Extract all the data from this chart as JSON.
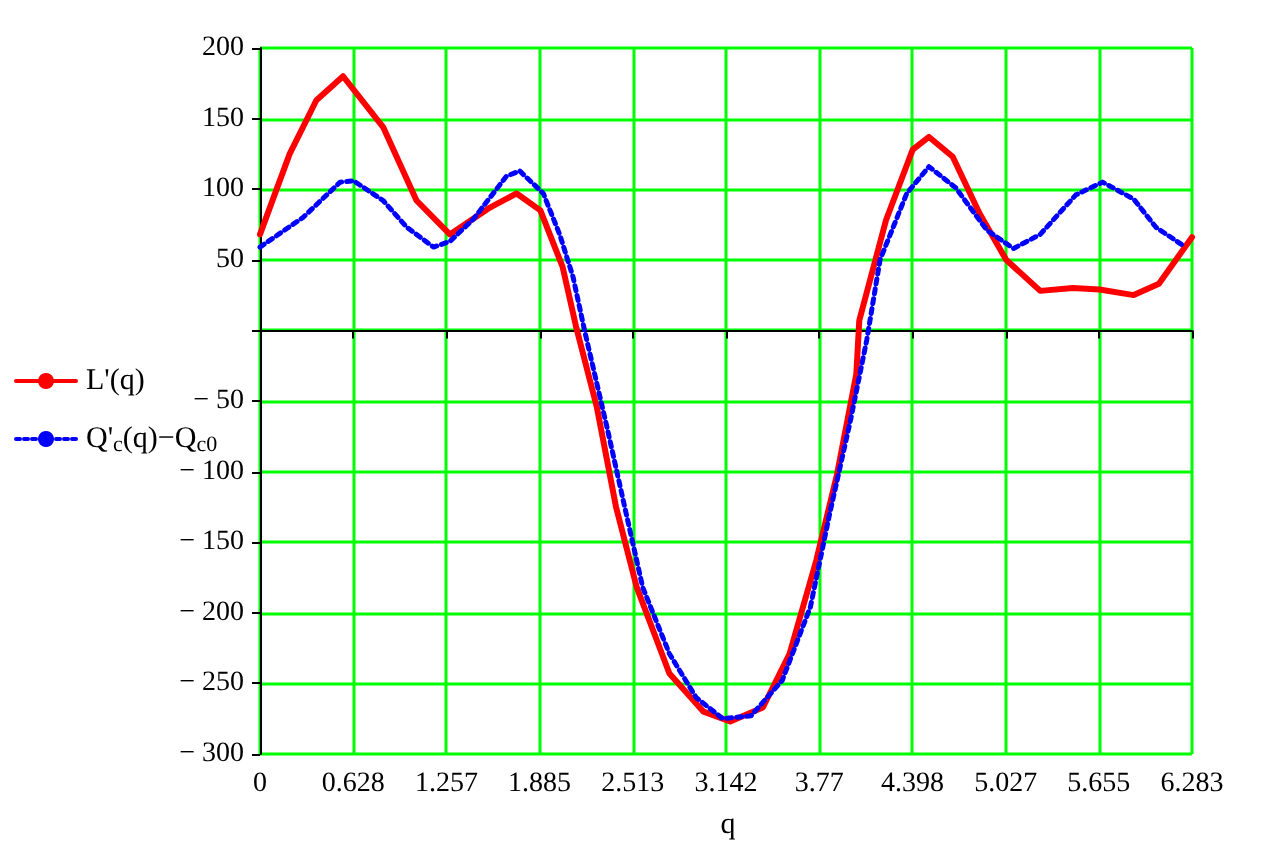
{
  "chart_data": {
    "type": "line",
    "xlabel": "q",
    "xlim": [
      0,
      6.283
    ],
    "xticks": [
      0,
      0.628,
      1.257,
      1.885,
      2.513,
      3.142,
      3.77,
      4.398,
      5.027,
      5.655,
      6.283
    ],
    "ylim": [
      -300,
      200
    ],
    "yticks": [
      -300,
      -250,
      -200,
      -150,
      -100,
      -50,
      {
        "value": 0,
        "label": null
      },
      50,
      100,
      150,
      200
    ],
    "grid": true,
    "legend": "left",
    "series": [
      {
        "name": "L'(q)",
        "color": "#ff0000",
        "line_style": "solid",
        "x": [
          0,
          0.2,
          0.38,
          0.56,
          0.83,
          1.055,
          1.28,
          1.55,
          1.73,
          1.89,
          2.04,
          2.13,
          2.27,
          2.4,
          2.54,
          2.76,
          2.99,
          3.17,
          3.39,
          3.57,
          3.75,
          3.89,
          4.02,
          4.04,
          4.22,
          4.4,
          4.51,
          4.67,
          4.85,
          5.03,
          5.26,
          5.48,
          5.66,
          5.89,
          6.06,
          6.283
        ],
        "values": [
          68,
          125,
          163,
          180,
          144,
          92,
          68,
          87,
          97,
          85,
          45,
          3,
          -54,
          -125,
          -182,
          -243,
          -270,
          -277,
          -267,
          -229,
          -163,
          -102,
          -31,
          7,
          78,
          128,
          137,
          123,
          83,
          50,
          28,
          30,
          29,
          25,
          33,
          66
        ]
      },
      {
        "name": "Q'$_{c}$(q)−Q$_{c0}$",
        "color": "#0000ff",
        "line_style": "dotted",
        "x": [
          0,
          0.29,
          0.54,
          0.63,
          0.83,
          0.99,
          1.17,
          1.28,
          1.44,
          1.66,
          1.75,
          1.91,
          2.02,
          2.11,
          2.19,
          2.34,
          2.45,
          2.58,
          2.76,
          2.94,
          3.12,
          3.31,
          3.52,
          3.71,
          3.84,
          3.98,
          4.09,
          4.18,
          4.36,
          4.51,
          4.69,
          4.9,
          5.08,
          5.26,
          5.5,
          5.68,
          5.89,
          6.04,
          6.24
        ],
        "values": [
          59,
          80,
          105,
          106,
          92,
          73,
          59,
          63,
          79,
          109,
          113,
          97,
          68,
          38,
          -1,
          -69,
          -121,
          -182,
          -229,
          -260,
          -275,
          -273,
          -248,
          -196,
          -130,
          -64,
          -7,
          50,
          97,
          116,
          101,
          71,
          58,
          68,
          96,
          105,
          93,
          73,
          59
        ]
      }
    ]
  }
}
